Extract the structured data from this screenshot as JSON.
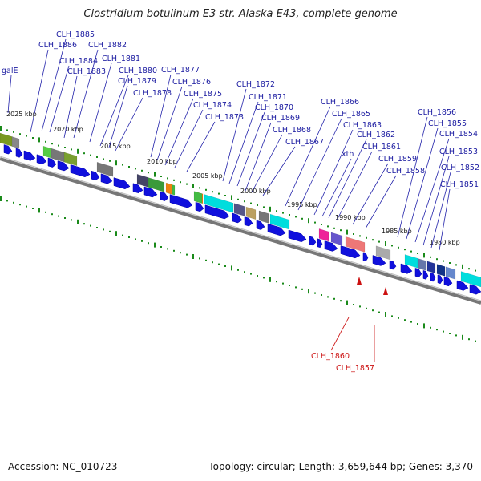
{
  "title": "Clostridium botulinum E3 str. Alaska E43, complete genome",
  "footer": {
    "accession": "Accession: NC_010723",
    "summary": "Topology: circular; Length: 3,659,644 bp; Genes: 3,370"
  },
  "colors": {
    "cds": "#1010dd",
    "backbone": "#777777",
    "label_blue": "#1a1aa0",
    "label_red": "#cc1111",
    "tick": "#1a8a1a"
  },
  "kbp_ticks": [
    "2025 kbp",
    "2020 kbp",
    "2015 kbp",
    "2010 kbp",
    "2005 kbp",
    "2000 kbp",
    "1995 kbp",
    "1990 kbp",
    "1985 kbp",
    "1980 kbp"
  ],
  "gene_labels": [
    "galE",
    "CLH_1886",
    "CLH_1885",
    "CLH_1884",
    "CLH_1883",
    "CLH_1882",
    "CLH_1881",
    "CLH_1880",
    "CLH_1879",
    "CLH_1878",
    "CLH_1877",
    "CLH_1876",
    "CLH_1875",
    "CLH_1874",
    "CLH_1873",
    "CLH_1872",
    "CLH_1871",
    "CLH_1870",
    "CLH_1869",
    "CLH_1868",
    "CLH_1867",
    "CLH_1866",
    "CLH_1865",
    "CLH_1863",
    "xth",
    "CLH_1862",
    "CLH_1861",
    "CLH_1859",
    "CLH_1858",
    "CLH_1856",
    "CLH_1855",
    "CLH_1854",
    "CLH_1853",
    "CLH_1852",
    "CLH_1851"
  ],
  "reverse_labels": [
    "CLH_1860",
    "CLH_1857"
  ]
}
